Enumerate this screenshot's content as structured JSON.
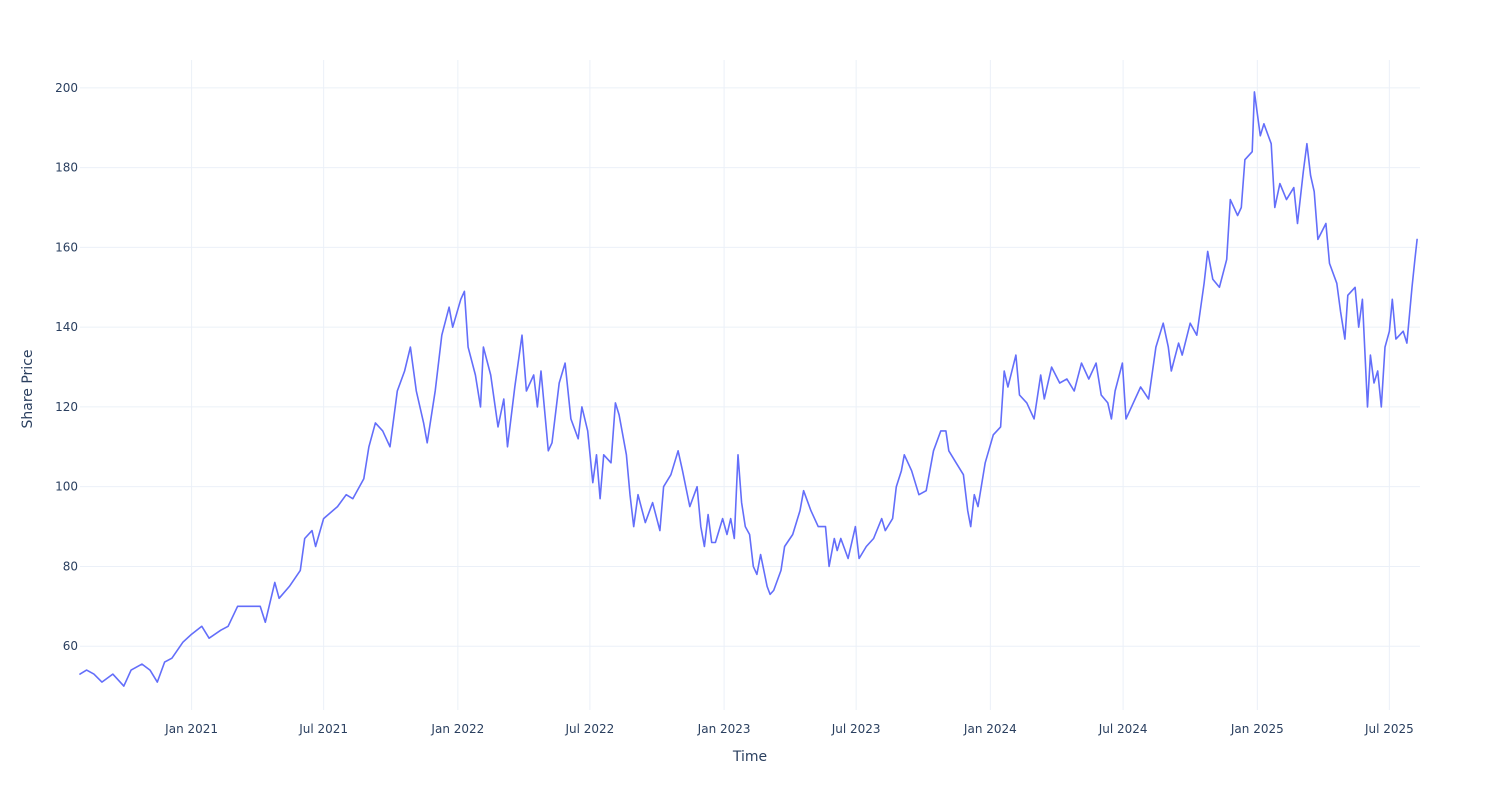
{
  "chart_data": {
    "type": "line",
    "title": "",
    "xlabel": "Time",
    "ylabel": "Share Price",
    "x_range": [
      "2020-08-01",
      "2025-08-12"
    ],
    "ylim": [
      44,
      207
    ],
    "grid": true,
    "legend": "none",
    "colors": {
      "line": "#636efa",
      "grid": "#ebf0f8",
      "text": "#2a3f5f"
    },
    "x_ticks": [
      {
        "date": "2021-01-01",
        "label": "Jan 2021"
      },
      {
        "date": "2021-07-01",
        "label": "Jul 2021"
      },
      {
        "date": "2022-01-01",
        "label": "Jan 2022"
      },
      {
        "date": "2022-07-01",
        "label": "Jul 2022"
      },
      {
        "date": "2023-01-01",
        "label": "Jan 2023"
      },
      {
        "date": "2023-07-01",
        "label": "Jul 2023"
      },
      {
        "date": "2024-01-01",
        "label": "Jan 2024"
      },
      {
        "date": "2024-07-01",
        "label": "Jul 2024"
      },
      {
        "date": "2025-01-01",
        "label": "Jan 2025"
      },
      {
        "date": "2025-07-01",
        "label": "Jul 2025"
      }
    ],
    "y_ticks": [
      60,
      80,
      100,
      120,
      140,
      160,
      180,
      200
    ],
    "series": [
      {
        "points": [
          [
            "2020-08-01",
            53
          ],
          [
            "2020-08-10",
            54
          ],
          [
            "2020-08-20",
            53
          ],
          [
            "2020-08-31",
            51
          ],
          [
            "2020-09-15",
            53
          ],
          [
            "2020-09-30",
            50
          ],
          [
            "2020-10-10",
            54
          ],
          [
            "2020-10-25",
            55.5
          ],
          [
            "2020-11-05",
            54
          ],
          [
            "2020-11-15",
            51
          ],
          [
            "2020-11-25",
            56
          ],
          [
            "2020-12-05",
            57
          ],
          [
            "2020-12-20",
            61
          ],
          [
            "2021-01-01",
            63
          ],
          [
            "2021-01-15",
            65
          ],
          [
            "2021-01-25",
            62
          ],
          [
            "2021-02-10",
            64
          ],
          [
            "2021-02-20",
            65
          ],
          [
            "2021-03-05",
            70
          ],
          [
            "2021-03-20",
            70
          ],
          [
            "2021-04-05",
            70
          ],
          [
            "2021-04-12",
            66
          ],
          [
            "2021-04-25",
            76
          ],
          [
            "2021-05-01",
            72
          ],
          [
            "2021-05-15",
            75
          ],
          [
            "2021-05-30",
            79
          ],
          [
            "2021-06-05",
            87
          ],
          [
            "2021-06-15",
            89
          ],
          [
            "2021-06-20",
            85
          ],
          [
            "2021-07-01",
            92
          ],
          [
            "2021-07-20",
            95
          ],
          [
            "2021-08-01",
            98
          ],
          [
            "2021-08-10",
            97
          ],
          [
            "2021-08-25",
            102
          ],
          [
            "2021-09-01",
            110
          ],
          [
            "2021-09-10",
            116
          ],
          [
            "2021-09-20",
            114
          ],
          [
            "2021-09-30",
            110
          ],
          [
            "2021-10-10",
            124
          ],
          [
            "2021-10-20",
            129
          ],
          [
            "2021-10-28",
            135
          ],
          [
            "2021-11-05",
            124
          ],
          [
            "2021-11-15",
            116
          ],
          [
            "2021-11-20",
            111
          ],
          [
            "2021-12-01",
            124
          ],
          [
            "2021-12-10",
            138
          ],
          [
            "2021-12-20",
            145
          ],
          [
            "2021-12-25",
            140
          ],
          [
            "2022-01-05",
            147
          ],
          [
            "2022-01-10",
            149
          ],
          [
            "2022-01-15",
            135
          ],
          [
            "2022-01-25",
            128
          ],
          [
            "2022-02-01",
            120
          ],
          [
            "2022-02-05",
            135
          ],
          [
            "2022-02-15",
            128
          ],
          [
            "2022-02-25",
            115
          ],
          [
            "2022-03-05",
            122
          ],
          [
            "2022-03-10",
            110
          ],
          [
            "2022-03-20",
            125
          ],
          [
            "2022-03-30",
            138
          ],
          [
            "2022-04-05",
            124
          ],
          [
            "2022-04-15",
            128
          ],
          [
            "2022-04-20",
            120
          ],
          [
            "2022-04-25",
            129
          ],
          [
            "2022-05-05",
            109
          ],
          [
            "2022-05-10",
            111
          ],
          [
            "2022-05-20",
            126
          ],
          [
            "2022-05-28",
            131
          ],
          [
            "2022-06-05",
            117
          ],
          [
            "2022-06-15",
            112
          ],
          [
            "2022-06-20",
            120
          ],
          [
            "2022-06-28",
            114
          ],
          [
            "2022-07-05",
            101
          ],
          [
            "2022-07-10",
            108
          ],
          [
            "2022-07-15",
            97
          ],
          [
            "2022-07-20",
            108
          ],
          [
            "2022-07-30",
            106
          ],
          [
            "2022-08-05",
            121
          ],
          [
            "2022-08-10",
            118
          ],
          [
            "2022-08-20",
            108
          ],
          [
            "2022-08-25",
            98
          ],
          [
            "2022-08-30",
            90
          ],
          [
            "2022-09-05",
            98
          ],
          [
            "2022-09-15",
            91
          ],
          [
            "2022-09-25",
            96
          ],
          [
            "2022-10-05",
            89
          ],
          [
            "2022-10-10",
            100
          ],
          [
            "2022-10-20",
            103
          ],
          [
            "2022-10-30",
            109
          ],
          [
            "2022-11-05",
            104
          ],
          [
            "2022-11-15",
            95
          ],
          [
            "2022-11-25",
            100
          ],
          [
            "2022-11-30",
            90
          ],
          [
            "2022-12-05",
            85
          ],
          [
            "2022-12-10",
            93
          ],
          [
            "2022-12-15",
            86
          ],
          [
            "2022-12-20",
            86
          ],
          [
            "2022-12-30",
            92
          ],
          [
            "2023-01-05",
            88
          ],
          [
            "2023-01-10",
            92
          ],
          [
            "2023-01-15",
            87
          ],
          [
            "2023-01-20",
            108
          ],
          [
            "2023-01-25",
            96
          ],
          [
            "2023-01-30",
            90
          ],
          [
            "2023-02-05",
            88
          ],
          [
            "2023-02-10",
            80
          ],
          [
            "2023-02-15",
            78
          ],
          [
            "2023-02-20",
            83
          ],
          [
            "2023-03-01",
            75
          ],
          [
            "2023-03-05",
            73
          ],
          [
            "2023-03-10",
            74
          ],
          [
            "2023-03-20",
            79
          ],
          [
            "2023-03-25",
            85
          ],
          [
            "2023-04-05",
            88
          ],
          [
            "2023-04-15",
            94
          ],
          [
            "2023-04-20",
            99
          ],
          [
            "2023-04-30",
            94
          ],
          [
            "2023-05-10",
            90
          ],
          [
            "2023-05-20",
            90
          ],
          [
            "2023-05-25",
            80
          ],
          [
            "2023-06-01",
            87
          ],
          [
            "2023-06-05",
            84
          ],
          [
            "2023-06-10",
            87
          ],
          [
            "2023-06-20",
            82
          ],
          [
            "2023-06-30",
            90
          ],
          [
            "2023-07-05",
            82
          ],
          [
            "2023-07-15",
            85
          ],
          [
            "2023-07-25",
            87
          ],
          [
            "2023-08-05",
            92
          ],
          [
            "2023-08-10",
            89
          ],
          [
            "2023-08-20",
            92
          ],
          [
            "2023-08-25",
            100
          ],
          [
            "2023-09-01",
            104
          ],
          [
            "2023-09-05",
            108
          ],
          [
            "2023-09-15",
            104
          ],
          [
            "2023-09-25",
            98
          ],
          [
            "2023-10-05",
            99
          ],
          [
            "2023-10-15",
            109
          ],
          [
            "2023-10-25",
            114
          ],
          [
            "2023-11-01",
            114
          ],
          [
            "2023-11-05",
            109
          ],
          [
            "2023-11-15",
            106
          ],
          [
            "2023-11-25",
            103
          ],
          [
            "2023-12-01",
            94
          ],
          [
            "2023-12-05",
            90
          ],
          [
            "2023-12-10",
            98
          ],
          [
            "2023-12-15",
            95
          ],
          [
            "2023-12-25",
            106
          ],
          [
            "2024-01-05",
            113
          ],
          [
            "2024-01-15",
            115
          ],
          [
            "2024-01-20",
            129
          ],
          [
            "2024-01-25",
            125
          ],
          [
            "2024-02-05",
            133
          ],
          [
            "2024-02-10",
            123
          ],
          [
            "2024-02-20",
            121
          ],
          [
            "2024-03-01",
            117
          ],
          [
            "2024-03-10",
            128
          ],
          [
            "2024-03-15",
            122
          ],
          [
            "2024-03-25",
            130
          ],
          [
            "2024-04-05",
            126
          ],
          [
            "2024-04-15",
            127
          ],
          [
            "2024-04-25",
            124
          ],
          [
            "2024-05-05",
            131
          ],
          [
            "2024-05-15",
            127
          ],
          [
            "2024-05-25",
            131
          ],
          [
            "2024-06-01",
            123
          ],
          [
            "2024-06-10",
            121
          ],
          [
            "2024-06-15",
            117
          ],
          [
            "2024-06-20",
            124
          ],
          [
            "2024-06-30",
            131
          ],
          [
            "2024-07-05",
            117
          ],
          [
            "2024-07-15",
            121
          ],
          [
            "2024-07-25",
            125
          ],
          [
            "2024-08-05",
            122
          ],
          [
            "2024-08-15",
            135
          ],
          [
            "2024-08-25",
            141
          ],
          [
            "2024-09-01",
            135
          ],
          [
            "2024-09-05",
            129
          ],
          [
            "2024-09-15",
            136
          ],
          [
            "2024-09-20",
            133
          ],
          [
            "2024-10-01",
            141
          ],
          [
            "2024-10-10",
            138
          ],
          [
            "2024-10-20",
            151
          ],
          [
            "2024-10-25",
            159
          ],
          [
            "2024-11-01",
            152
          ],
          [
            "2024-11-10",
            150
          ],
          [
            "2024-11-20",
            157
          ],
          [
            "2024-11-25",
            172
          ],
          [
            "2024-12-05",
            168
          ],
          [
            "2024-12-10",
            170
          ],
          [
            "2024-12-15",
            182
          ],
          [
            "2024-12-25",
            184
          ],
          [
            "2024-12-28",
            199
          ],
          [
            "2025-01-05",
            188
          ],
          [
            "2025-01-10",
            191
          ],
          [
            "2025-01-20",
            186
          ],
          [
            "2025-01-25",
            170
          ],
          [
            "2025-02-01",
            176
          ],
          [
            "2025-02-10",
            172
          ],
          [
            "2025-02-20",
            175
          ],
          [
            "2025-02-25",
            166
          ],
          [
            "2025-03-05",
            179
          ],
          [
            "2025-03-10",
            186
          ],
          [
            "2025-03-15",
            178
          ],
          [
            "2025-03-20",
            174
          ],
          [
            "2025-03-25",
            162
          ],
          [
            "2025-04-05",
            166
          ],
          [
            "2025-04-10",
            156
          ],
          [
            "2025-04-20",
            151
          ],
          [
            "2025-04-25",
            144
          ],
          [
            "2025-05-01",
            137
          ],
          [
            "2025-05-05",
            148
          ],
          [
            "2025-05-15",
            150
          ],
          [
            "2025-05-20",
            140
          ],
          [
            "2025-05-25",
            147
          ],
          [
            "2025-06-01",
            120
          ],
          [
            "2025-06-05",
            133
          ],
          [
            "2025-06-10",
            126
          ],
          [
            "2025-06-15",
            129
          ],
          [
            "2025-06-20",
            120
          ],
          [
            "2025-06-25",
            135
          ],
          [
            "2025-07-01",
            139
          ],
          [
            "2025-07-05",
            147
          ],
          [
            "2025-07-10",
            137
          ],
          [
            "2025-07-20",
            139
          ],
          [
            "2025-07-25",
            136
          ],
          [
            "2025-08-01",
            150
          ],
          [
            "2025-08-05",
            157
          ],
          [
            "2025-08-08",
            162
          ]
        ]
      }
    ]
  }
}
